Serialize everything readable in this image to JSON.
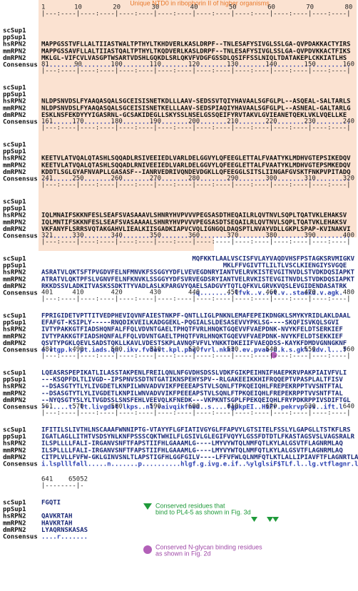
{
  "header": {
    "title": "Unique NTD0 in ribophorin II of higher organisms"
  },
  "names": [
    "scSup1",
    "ppSup1",
    "hsRPN2",
    "mmRPN2",
    "dmRPN2",
    "Consensus"
  ],
  "blocks": [
    {
      "numbers": [
        "1",
        "10",
        "20",
        "30",
        "40",
        "50",
        "60",
        "70",
        "80"
      ],
      "ruler": "|---:----|----:----|----:----|----:----|----:----|----:----|----:----|----:----|",
      "rows": [
        "",
        "",
        "MAPPGSSTVFLLALTIIASTWALTPTHYLTKHDVERLKASLDRPF--TNLESAFYSIVGLSSLGA-QVPDAKKACTYIRS",
        "MAPPGSSAVFLLALTIIASTQALTPTHYLTKQDVERLKASLDRPF--TNLESAFYSIVGLSSLGA-QVPDVKKACTFIKS",
        "MKLGL-VIFCVLVASGPTWSARTVDSHLGQKDLSRLQKVFVDGFGSSDLQSIFFSSLNIQLTDATAKEPLCKKIATLHS",
        "................................................................................"
      ]
    },
    {
      "numbers": [
        "81",
        "90",
        "100",
        "110",
        "120",
        "130",
        "140",
        "150",
        "160"
      ],
      "ruler": "|---:----|----:----|----:----|----:----|----:----|----:----|----:----|----:----|",
      "rows": [
        "",
        "",
        "NLDPSNVDSLFYAAQASQALSGCEISISNETKDLLLAAV-SEDSSVTQIYHAVAALSGFGLPL--ASQEAL-SALTARLS",
        "NLDPSNVDSLFYAAQASQALSGCEISISNETKELLLAAV-SEDSPIAQIYHAVAALSGFGLPL--ASNEAL-GALTARLG",
        "ESKLNSFEKDYYYIGASRNL-GCSAKIDEGLLSKYSSLNSELGSSQEIFYRVTAKVLGVIEANETQEKLVKLVQELLKE",
        "................................................................................"
      ]
    },
    {
      "numbers": [
        "161",
        "170",
        "180",
        "190",
        "200",
        "210",
        "220",
        "230",
        "240"
      ],
      "ruler": "|---:----|----:----|----:----|----:----|----:----|----:----|----:----|----:----|",
      "rows": [
        "",
        "",
        "KEETVLATVQALQTASHLSQQADLRSIVEEIEDLVARLDELGGVYLQFEEGLETTALFVAATYKLMDHVGTEPSIKEDQV",
        "KEETVLATVQALQTASHLSQQADLRNIVEEIEDLVARLDELGGVYLQFEEGLETTALFVAATYKLMDHVGTEPSMKEDQV",
        "KDDTLSGLGYAFNVAPLLGASASF--IANRVEDRIVQNDEVDGKLLQFEEGGLSITSLIINGAFGVSKTFNKPVPITADQ",
        "................................................................................"
      ]
    },
    {
      "numbers": [
        "241",
        "250",
        "260",
        "270",
        "280",
        "290",
        "300",
        "310",
        "320"
      ],
      "ruler": "|---:----|----:----|----:----|----:----|----:----|----:----|----:----|----:----|",
      "rows": [
        "",
        "",
        "IQLMNAIFSKKNFESLSEAFSVASAAAVLSHNRYHVPVVVPEGSASDTHEQAILRLQVTNVLSQPLTQATVKLEHAKSV",
        "IQLMNTIFSKKNFESLSEAFSVASAAAALSHNRYHVPVVVPEGSASDTSEQAILRLQVTNVLSQPLTQATVKLEHAKSV",
        "VKFANYFLSRRSVQTAKGAHVLIEALKIISGADKIAPVCVQLIGNGQLDAQSPTLNVAYVDLLGKPLSPAP-KVINAKVI",
        "................................................................................"
      ]
    },
    {
      "numbers": [
        "321",
        "330",
        "340",
        "350",
        "360",
        "370",
        "380",
        "390",
        "400"
      ],
      "ruler": "|---:----|----:----|----:----|----:----|----:----|----:----|----:----|----:----|",
      "rows": [
        "                                       MQFKKTLAALVSCISFVLAYVAQDVHSFPSTAGKSRVMIGKV",
        "                                               MKLFFVGIVTTLILTLVSCLKIENGIYSVGQE",
        "ASRATVLQKTSFTPVGDVFELNFMNVKFSSGGYYDFLVEVEGDNRYIANTVELRVKISTEVGITNVDLSTVDKDQSIAPKT",
        "ATRATVLQKTPFSLVGNVFELNFKNVKLSSGGYYDFSVRVEGDSRYIANTVELRVKISTEVGITNVDLSTVDKDQSIAPKT",
        "RKKDSSVLADKITVASKSSDKTTYVADLASLKPARGVYQAELSADGVYTQTLQFKVLGRVKVQSLEVGIDENDASATRK",
        "                                       .q.........lfvk..v..vt.v..staekd.v.agk."
      ]
    },
    {
      "numbers": [
        "401",
        "410",
        "420",
        "430",
        "440",
        "450",
        "460",
        "470",
        "480"
      ],
      "ruler": "|---:----|----:----|----:----|----:----|----:----|----:----|----:----|----:----|",
      "rows": [
        "FPRIGIDETVPTTITVEDPHEVIQVNFAIESTNKPF-QNTLLIGLPNKNLEMAFEPEIKDNGKLSMYKYRIDLAKLDAAL",
        "EFAFGT-KSIPLY-----RNQDIKVEILKADGGEKL-PQGIALSLDESASEVVYPKLSG----SKQFISVKQLSGVI",
        "IVTYPAKKGTFIADSHQNFALFFQLVDVNTGAELTPHQTFVRLHNQKTGQEVVFVAEPDNK-NVYKFELDTSERKIEF",
        "IVTYPAKKGTFIADSHQNFALFFQLVDVNTGAELTPHQTFVRLHNQKTGQEVVFVAEPDNK-NVYKFELDTSEKKIEF",
        "QSVTYPGKLQEVLSADSTQKLLKAVLVDESTSKPLAVNQFVFVLYNKKTDKEIIFVAEQDSS-KAYKFDMDVGNNGKNF",
        "e.vtgp.k..pt.iads.qn..ikv.fvdest.kpl.phq.fvrl.nkkt..ev.pvae.d.k.s.gk%.idv.l...f"
      ]
    },
    {
      "numbers": [
        "481",
        "490",
        "500",
        "510",
        "520",
        "530",
        "540",
        "550",
        "560"
      ],
      "ruler": "|---:----|----:----|----:----|----:----|----:----|----:----|----:----|----:----|",
      "rows": [
        "LQEASRSPEPIKATLILASSTAKPENLFREILQNLNFGVDHSDSSLVDKFGIKPEIHNIFHAEPKRVPAKPIAIVFVLI",
        "---KSQPFDLTLIVGD--IPSPNVSSDTNTGATIKNSPEHYSPV--RLGAKEEIKKHIFRQQEPTVPASPLALTFISV",
        "--DSASGTYTLYLIVGDETLKNPILWNVADVVIKFPEEEAPSTVLSQNLFTPKQEIQHLFREPEKRPPTVVSNTFTAL",
        "--DSASGTYTLYLIVGDETLKNPILWNVADVVIKFPEEEAPSTVLSQNLFTPKQEIQHLFREPEKRPPTVVSNTFTAL",
        "--NYQSGTYSLYLTVGDSSLSNSFEHLVEEVQLKFNEDK---VKPKNTSGPLFPEKQEIQHLFRYPDKRPPIVSDIFTGL",
        "--.....t..lt.livgdst.lkps..nl.vaivqikfned..s....fgpkpEI..HiFr.pekrvp.vs..ift.l"
      ]
    },
    {
      "numbers": [
        "561",
        "570",
        "580",
        "590",
        "600",
        "610",
        "620",
        "630",
        "640"
      ],
      "ruler": "|---:----|----:----|----:----|----:----|----:----|----:----|----:----|----:----|",
      "rows": [
        "IFITILSLIVTHLNSCAAAFWNNIPTG-VTAYYFLGFIATIVGYGLFFAPVYLGTSITELFSSLYLGAPGLLTSTKFLRS",
        "IGATLAGLLITHTVSDSYNLKNFPSSSCQKTWHILFLGSIVLGLEGIFVQYYLGSSFDTDTLFKASTAGSVSLVAGSRALR",
        "ILSPLLLLFALI-IRGANVSNFTFAPSTIIFHLGAAAMLG----LMYVYWTQLNMFQTLKYLALGSVTFLAGNRMLAQ",
        "ILSPLLLLFALI-IRGANVSNFTFAPSTIIFHLGAAAMLG----LMYVYWTQLNMFQTLKYLALGSVTFLAGNRMLAQ",
        "CITPLVLLFVFW-GKLGINVSNLTLAPSTIGFHLGGFGILV----LFFVFWLQLNMFQTLKTLALLIPIAVFTFLAGNRTLA",
        "i.lsplllfall.....n.......p..........hlgf.g.ivg.e.if..%ylglsiF$TLf.l..lg.vtflagnr.lr"
      ]
    },
    {
      "numbers": [
        "641",
        "65052"
      ],
      "ruler": "|--------|-",
      "rows": [
        "FGQTI",
        "",
        "QAVKRTAH",
        "HAVKRTAH",
        "LYAQRNSKASAS",
        "....r......."
      ]
    }
  ],
  "legend": [
    {
      "lines": [
        "Conserved residues that",
        "bind to PL4-5 as shown in Fig. 3d"
      ]
    },
    {
      "lines": [
        "Conserved N-glycan binding residues",
        "as shown in Fig. 2d"
      ]
    }
  ]
}
